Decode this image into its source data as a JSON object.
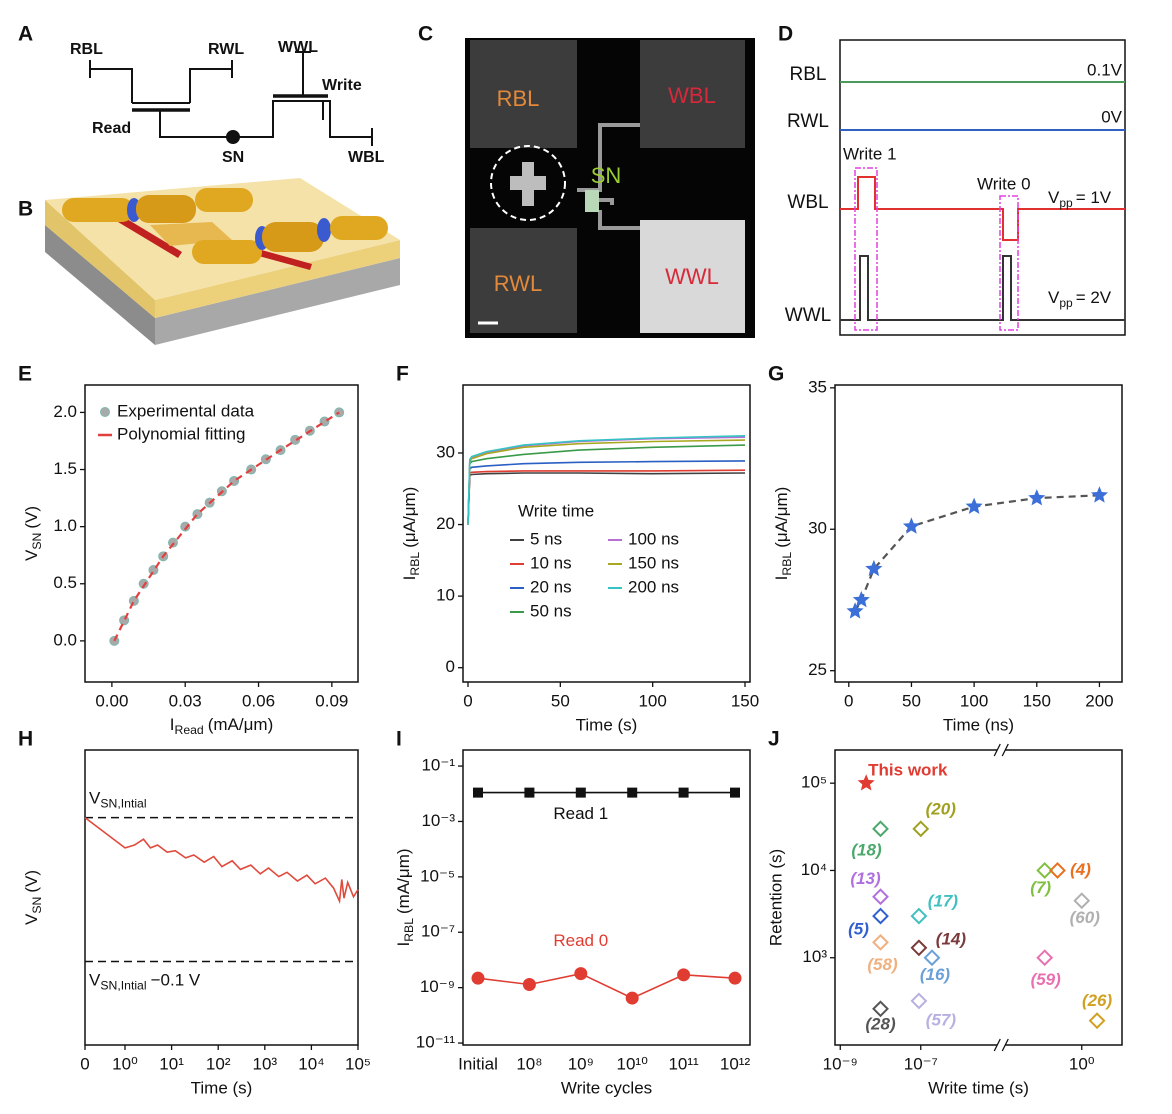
{
  "diagrams": {
    "A": {
      "panel": "A",
      "labels": [
        "RBL",
        "RWL",
        "WWL",
        "Write",
        "Read",
        "SN",
        "WBL"
      ]
    },
    "B": {
      "panel": "B"
    },
    "C": {
      "panel": "C",
      "labels": [
        "RBL",
        "WBL",
        "SN",
        "RWL",
        "WWL"
      ]
    },
    "D": {
      "panel": "D",
      "signals": [
        "RBL",
        "RWL",
        "WBL",
        "WWL"
      ],
      "levels": [
        "0.1V",
        "0V"
      ],
      "pulses": [
        "Write 1",
        "Write 0"
      ],
      "vpp": [
        {
          "text": "V",
          "sub": "pp",
          "unit": "= 1V"
        },
        {
          "text": "V",
          "sub": "pp",
          "unit": "= 2V"
        }
      ]
    }
  },
  "chart_data": [
    {
      "panel": "E",
      "type": "scatter",
      "x_label": {
        "text": "I",
        "sub": "Read",
        "unit": "(mA/μm)"
      },
      "y_label": {
        "text": "V",
        "sub": "SN",
        "unit": "(V)"
      },
      "xlim": [
        -0.011,
        0.1007
      ],
      "ylim": [
        -0.36,
        2.24
      ],
      "xticks": [
        {
          "value": 0,
          "label": "0.00"
        },
        0.03,
        0.06,
        0.09
      ],
      "yticks": [
        {
          "value": 0,
          "label": "0.0"
        },
        0.5,
        {
          "value": 1,
          "label": "1.0"
        },
        1.5,
        {
          "value": 2,
          "label": "2.0"
        }
      ],
      "legend": "upper left",
      "series": [
        {
          "name": "Experimental data",
          "color": "#a9a9a9",
          "marker": "circle",
          "x": [
            0.001,
            0.005,
            0.009,
            0.013,
            0.017,
            0.021,
            0.025,
            0.03,
            0.035,
            0.04,
            0.045,
            0.05,
            0.057,
            0.063,
            0.069,
            0.075,
            0.081,
            0.087,
            0.093
          ],
          "values": [
            0,
            0.18,
            0.35,
            0.5,
            0.62,
            0.74,
            0.86,
            1.0,
            1.11,
            1.21,
            1.31,
            1.4,
            1.5,
            1.59,
            1.67,
            1.76,
            1.84,
            1.92,
            2.0
          ]
        },
        {
          "name": "Polynomial fitting",
          "color": "#e04040",
          "line": "dashed",
          "x": [
            0.001,
            0.009,
            0.021,
            0.035,
            0.05,
            0.069,
            0.093
          ],
          "values": [
            0,
            0.35,
            0.74,
            1.11,
            1.4,
            1.67,
            2.0
          ]
        }
      ]
    },
    {
      "panel": "F",
      "type": "line",
      "x_label": "Time (s)",
      "y_label": {
        "text": "I",
        "sub": "RBL",
        "unit": "(μA/μm)"
      },
      "xlim": [
        -2.7,
        152.7
      ],
      "ylim": [
        -2,
        39.5
      ],
      "xticks": [
        0,
        50,
        100,
        150
      ],
      "yticks": [
        0,
        10,
        20,
        30
      ],
      "legend": "center",
      "legend_title": "Write time",
      "x": [
        0,
        1,
        2,
        10,
        30,
        60,
        100,
        150
      ],
      "series": [
        {
          "name": "5 ns",
          "color": "#404040",
          "line": "solid",
          "values": [
            20,
            26.9,
            27.0,
            27.1,
            27.2,
            27.2,
            27.1,
            27.2
          ]
        },
        {
          "name": "10 ns",
          "color": "#e03c31",
          "line": "solid",
          "values": [
            20,
            27.2,
            27.3,
            27.4,
            27.5,
            27.5,
            27.5,
            27.6
          ]
        },
        {
          "name": "20 ns",
          "color": "#2a5fc4",
          "line": "solid",
          "values": [
            20,
            27.8,
            28.0,
            28.2,
            28.5,
            28.7,
            28.8,
            28.9
          ]
        },
        {
          "name": "50 ns",
          "color": "#3a9a4a",
          "line": "solid",
          "values": [
            20,
            28.5,
            28.8,
            29.2,
            29.8,
            30.4,
            30.8,
            31.1
          ]
        },
        {
          "name": "100 ns",
          "color": "#b66fd6",
          "line": "solid",
          "values": [
            20,
            29.0,
            29.3,
            30.0,
            31.0,
            31.6,
            32.0,
            32.2
          ]
        },
        {
          "name": "150 ns",
          "color": "#a8a820",
          "line": "solid",
          "values": [
            20,
            28.8,
            29.2,
            29.9,
            30.8,
            31.3,
            31.6,
            31.8
          ]
        },
        {
          "name": "200 ns",
          "color": "#35c4c4",
          "line": "solid",
          "values": [
            20,
            29.1,
            29.5,
            30.2,
            31.1,
            31.7,
            32.1,
            32.4
          ]
        }
      ]
    },
    {
      "panel": "G",
      "type": "scatter",
      "x_label": "Time (ns)",
      "y_label": {
        "text": "I",
        "sub": "RBL",
        "unit": "(μA/μm)"
      },
      "xlim": [
        -11,
        218
      ],
      "ylim": [
        24.6,
        35.1
      ],
      "xticks": [
        0,
        50,
        100,
        150,
        200
      ],
      "yticks": [
        25,
        30,
        35
      ],
      "series": [
        {
          "color": "#3c6fd8",
          "marker": "star",
          "line": "dashed",
          "line_color": "#555555",
          "x": [
            5,
            10,
            20,
            50,
            100,
            150,
            200
          ],
          "values": [
            27.1,
            27.5,
            28.6,
            30.1,
            30.8,
            31.1,
            31.2
          ]
        }
      ]
    },
    {
      "panel": "H",
      "type": "line",
      "xscale": "symlog",
      "x_label": "Time (s)",
      "y_label": {
        "text": "V",
        "sub": "SN",
        "unit": "(V)"
      },
      "xlim": [
        0,
        100000
      ],
      "ylim": [
        -0.158,
        0.047
      ],
      "xticks": [
        0,
        {
          "value": 1,
          "label": "10⁰"
        },
        {
          "value": 10,
          "label": "10¹"
        },
        {
          "value": 100,
          "label": "10²"
        },
        {
          "value": 1000,
          "label": "10³"
        },
        {
          "value": 10000,
          "label": "10⁴"
        },
        {
          "value": 100000,
          "label": "10⁵"
        }
      ],
      "reference_lines": [
        {
          "value": 0,
          "label": {
            "text": "V",
            "sub": "SN,Intial"
          }
        },
        {
          "value": -0.1,
          "label": {
            "text": "V",
            "sub": "SN,Intial",
            "unit": "−0.1 V"
          }
        }
      ],
      "series": [
        {
          "color": "#e04a3c",
          "line": "solid",
          "x": [
            0,
            1,
            1.6,
            2.5,
            3.5,
            5,
            8,
            12,
            20,
            30,
            50,
            80,
            120,
            200,
            300,
            500,
            800,
            1200,
            2000,
            3000,
            5000,
            8000,
            12000,
            20000,
            30000,
            40000,
            45000,
            50000,
            60000,
            80000,
            100000
          ],
          "values": [
            0,
            -0.021,
            -0.019,
            -0.015,
            -0.021,
            -0.019,
            -0.024,
            -0.023,
            -0.028,
            -0.026,
            -0.031,
            -0.027,
            -0.034,
            -0.03,
            -0.036,
            -0.033,
            -0.039,
            -0.035,
            -0.041,
            -0.038,
            -0.044,
            -0.04,
            -0.046,
            -0.042,
            -0.049,
            -0.058,
            -0.043,
            -0.056,
            -0.045,
            -0.055,
            -0.05
          ]
        }
      ]
    },
    {
      "panel": "I",
      "type": "line",
      "yscale": "log",
      "x_label": "Write cycles",
      "y_label": {
        "text": "I",
        "sub": "RBL",
        "unit": "(mA/μm)"
      },
      "categories": [
        "Initial",
        "10⁸",
        "10⁹",
        "10¹⁰",
        "10¹¹",
        "10¹²"
      ],
      "ylim": [
        8.5e-12,
        0.38
      ],
      "yticks": [
        {
          "value": 0.1,
          "label": "10⁻¹"
        },
        {
          "value": 0.001,
          "label": "10⁻³"
        },
        {
          "value": 1e-05,
          "label": "10⁻⁵"
        },
        {
          "value": 1e-07,
          "label": "10⁻⁷"
        },
        {
          "value": 1e-09,
          "label": "10⁻⁹"
        },
        {
          "value": 1e-11,
          "label": "10⁻¹¹"
        }
      ],
      "series": [
        {
          "name": "Read 1",
          "color": "#111111",
          "marker": "square",
          "line": "solid",
          "values": [
            0.011,
            0.011,
            0.011,
            0.011,
            0.011,
            0.011
          ]
        },
        {
          "name": "Read 0",
          "color": "#e03c31",
          "marker": "circle",
          "line": "solid",
          "values": [
            2.2e-09,
            1.3e-09,
            3.2e-09,
            4.2e-10,
            2.9e-09,
            2.2e-09
          ]
        }
      ]
    },
    {
      "panel": "J",
      "type": "scatter",
      "xscale": "log",
      "yscale": "log",
      "x_label": "Write time (s)",
      "y_label": "Retention (s)",
      "xlim": [
        7.4e-10,
        10
      ],
      "xbreak": [
        1e-05,
        0.01
      ],
      "ylim": [
        100,
        240000
      ],
      "xticks": [
        {
          "value": 1e-09,
          "label": "10⁻⁹"
        },
        {
          "value": 1e-07,
          "label": "10⁻⁷"
        },
        {
          "value": 1,
          "label": "10⁰"
        }
      ],
      "yticks": [
        {
          "value": 1000,
          "label": "10³"
        },
        {
          "value": 10000,
          "label": "10⁴"
        },
        {
          "value": 100000,
          "label": "10⁵"
        }
      ],
      "series": [
        {
          "name": "This work",
          "color": "#e03c31",
          "marker": "star",
          "x": [
            4.4e-09
          ],
          "values": [
            100000
          ]
        },
        {
          "name": "(18)",
          "color": "#4aa86a",
          "marker": "diamond",
          "x": [
            1e-08
          ],
          "values": [
            30000
          ]
        },
        {
          "name": "(20)",
          "color": "#a0a020",
          "marker": "diamond",
          "x": [
            1e-07
          ],
          "values": [
            30000
          ]
        },
        {
          "name": "(13)",
          "color": "#b070e0",
          "marker": "diamond",
          "x": [
            1e-08
          ],
          "values": [
            5000
          ]
        },
        {
          "name": "(5)",
          "color": "#3060d0",
          "marker": "diamond",
          "x": [
            1e-08
          ],
          "values": [
            3000
          ]
        },
        {
          "name": "(58)",
          "color": "#f0b080",
          "marker": "diamond",
          "x": [
            1e-08
          ],
          "values": [
            1500
          ]
        },
        {
          "name": "(28)",
          "color": "#555555",
          "marker": "diamond",
          "x": [
            1e-08
          ],
          "values": [
            260
          ]
        },
        {
          "name": "(17)",
          "color": "#40c0c0",
          "marker": "diamond",
          "x": [
            9e-08
          ],
          "values": [
            3000
          ]
        },
        {
          "name": "(14)",
          "color": "#7a3a3a",
          "marker": "diamond",
          "x": [
            9e-08
          ],
          "values": [
            1300
          ]
        },
        {
          "name": "(16)",
          "color": "#6aa0d8",
          "marker": "diamond",
          "x": [
            1.9e-07
          ],
          "values": [
            1000
          ]
        },
        {
          "name": "(57)",
          "color": "#b8b0e0",
          "marker": "diamond",
          "x": [
            9e-08
          ],
          "values": [
            320
          ]
        },
        {
          "name": "(7)",
          "color": "#80c040",
          "marker": "diamond",
          "x": [
            0.12
          ],
          "values": [
            10000
          ]
        },
        {
          "name": "(4)",
          "color": "#e87020",
          "marker": "diamond",
          "x": [
            0.25
          ],
          "values": [
            10000
          ]
        },
        {
          "name": "(60)",
          "color": "#b0b0b0",
          "marker": "diamond",
          "x": [
            1
          ],
          "values": [
            4500
          ]
        },
        {
          "name": "(59)",
          "color": "#e870b0",
          "marker": "diamond",
          "x": [
            0.12
          ],
          "values": [
            1000
          ]
        },
        {
          "name": "(26)",
          "color": "#d0a020",
          "marker": "diamond",
          "x": [
            2.4
          ],
          "values": [
            190
          ]
        }
      ]
    }
  ]
}
